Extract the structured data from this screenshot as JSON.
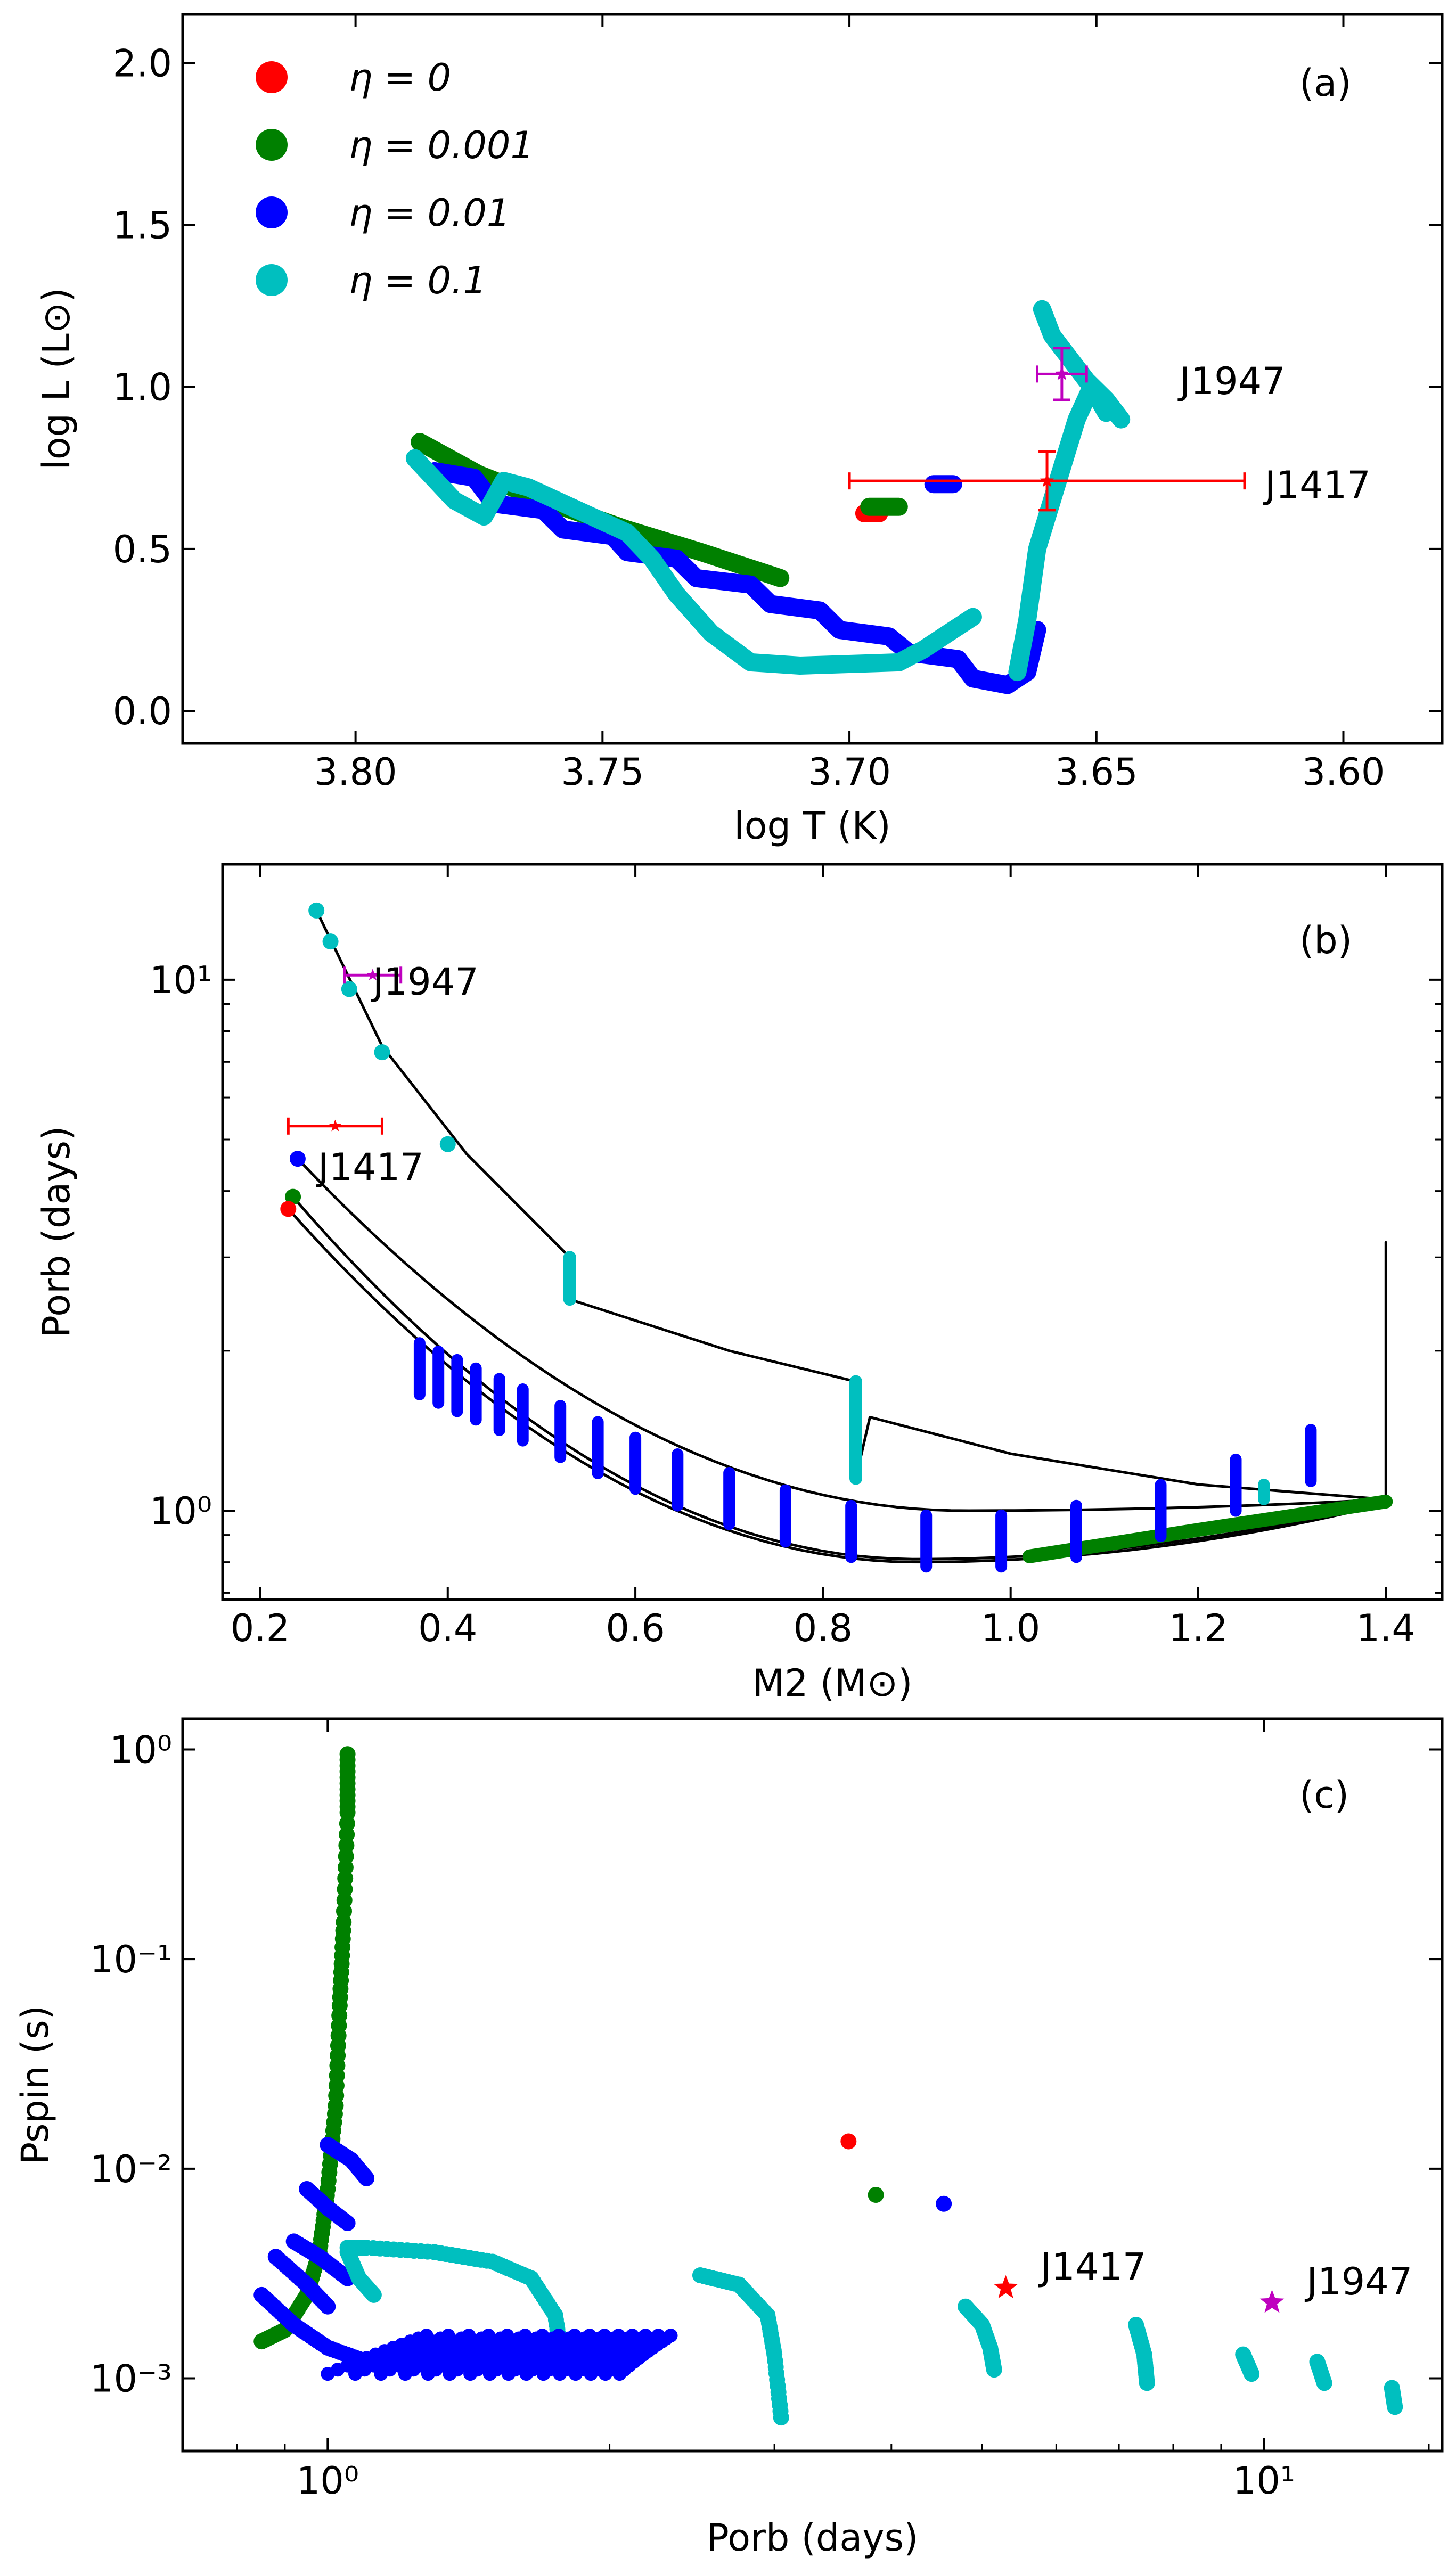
{
  "figure": {
    "panels": [
      "a",
      "b",
      "c"
    ]
  },
  "chart_data": [
    {
      "id": "a",
      "type": "scatter",
      "panel_label": "(a)",
      "xlabel": "log T (K)",
      "ylabel": "log L (L⊙)",
      "xlim": [
        3.835,
        3.58
      ],
      "ylim": [
        -0.1,
        2.15
      ],
      "x_scale": "linear",
      "y_scale": "linear",
      "x_ticks": [
        3.8,
        3.75,
        3.7,
        3.65,
        3.6
      ],
      "x_tick_labels": [
        "3.80",
        "3.75",
        "3.70",
        "3.65",
        "3.60"
      ],
      "y_ticks": [
        0.0,
        0.5,
        1.0,
        1.5,
        2.0
      ],
      "y_tick_labels": [
        "0.0",
        "0.5",
        "1.0",
        "1.5",
        "2.0"
      ],
      "legend_position": "top-left",
      "legend": [
        {
          "label": "η = 0",
          "color": "#ff0000"
        },
        {
          "label": "η = 0.001",
          "color": "#008000"
        },
        {
          "label": "η = 0.01",
          "color": "#0000ff"
        },
        {
          "label": "η = 0.1",
          "color": "#00bfbf"
        }
      ],
      "series": [
        {
          "color": "#008000",
          "points": [
            [
              3.787,
              0.83
            ],
            [
              3.775,
              0.73
            ],
            [
              3.76,
              0.64
            ],
            [
              3.745,
              0.56
            ],
            [
              3.73,
              0.49
            ],
            [
              3.72,
              0.44
            ],
            [
              3.714,
              0.41
            ]
          ]
        },
        {
          "color": "#ff0000",
          "points": [
            [
              3.697,
              0.61
            ],
            [
              3.694,
              0.61
            ]
          ]
        },
        {
          "color": "#008000",
          "points": [
            [
              3.696,
              0.63
            ],
            [
              3.69,
              0.63
            ]
          ]
        },
        {
          "color": "#0000ff",
          "points": [
            [
              3.683,
              0.7
            ],
            [
              3.679,
              0.7
            ]
          ]
        },
        {
          "color": "#0000ff",
          "points": [
            [
              3.784,
              0.74
            ],
            [
              3.776,
              0.72
            ],
            [
              3.772,
              0.64
            ],
            [
              3.762,
              0.62
            ],
            [
              3.758,
              0.56
            ],
            [
              3.748,
              0.54
            ],
            [
              3.745,
              0.49
            ],
            [
              3.735,
              0.47
            ],
            [
              3.731,
              0.41
            ],
            [
              3.72,
              0.39
            ],
            [
              3.716,
              0.33
            ],
            [
              3.706,
              0.31
            ],
            [
              3.702,
              0.25
            ],
            [
              3.692,
              0.23
            ],
            [
              3.688,
              0.18
            ],
            [
              3.678,
              0.16
            ],
            [
              3.675,
              0.1
            ],
            [
              3.668,
              0.08
            ],
            [
              3.664,
              0.12
            ],
            [
              3.662,
              0.25
            ]
          ]
        },
        {
          "color": "#00bfbf",
          "points": [
            [
              3.788,
              0.78
            ],
            [
              3.78,
              0.65
            ],
            [
              3.774,
              0.6
            ],
            [
              3.77,
              0.71
            ],
            [
              3.765,
              0.69
            ],
            [
              3.755,
              0.62
            ],
            [
              3.745,
              0.55
            ],
            [
              3.74,
              0.47
            ],
            [
              3.735,
              0.36
            ],
            [
              3.728,
              0.24
            ],
            [
              3.72,
              0.15
            ],
            [
              3.71,
              0.14
            ],
            [
              3.69,
              0.15
            ],
            [
              3.685,
              0.19
            ],
            [
              3.68,
              0.24
            ],
            [
              3.675,
              0.29
            ]
          ]
        },
        {
          "color": "#00bfbf",
          "points": [
            [
              3.666,
              0.12
            ],
            [
              3.664,
              0.28
            ],
            [
              3.662,
              0.5
            ],
            [
              3.659,
              0.65
            ],
            [
              3.656,
              0.8
            ],
            [
              3.654,
              0.9
            ],
            [
              3.651,
              1.0
            ],
            [
              3.648,
              0.92
            ]
          ]
        },
        {
          "color": "#00bfbf",
          "points": [
            [
              3.661,
              1.24
            ],
            [
              3.659,
              1.16
            ],
            [
              3.656,
              1.1
            ],
            [
              3.652,
              1.02
            ],
            [
              3.648,
              0.96
            ],
            [
              3.645,
              0.9
            ]
          ]
        }
      ],
      "annotations": [
        {
          "name": "J1947",
          "x": 3.657,
          "y": 1.04,
          "xerr": 0.005,
          "yerr": 0.08,
          "color": "#bf00bf"
        },
        {
          "name": "J1417",
          "x": 3.66,
          "y": 0.71,
          "xerr": 0.04,
          "yerr": 0.09,
          "color": "#ff0000"
        }
      ]
    },
    {
      "id": "b",
      "type": "line",
      "panel_label": "(b)",
      "xlabel": "M2 (M⊙)",
      "ylabel": "Porb (days)",
      "xlim": [
        0.16,
        1.46
      ],
      "ylim": [
        0.68,
        16.5
      ],
      "x_scale": "linear",
      "y_scale": "log",
      "x_ticks": [
        0.2,
        0.4,
        0.6,
        0.8,
        1.0,
        1.2,
        1.4
      ],
      "x_tick_labels": [
        "0.2",
        "0.4",
        "0.6",
        "0.8",
        "1.0",
        "1.2",
        "1.4"
      ],
      "y_ticks": [
        1,
        10
      ],
      "y_tick_labels": [
        "10⁰",
        "10¹"
      ],
      "tracks": [
        {
          "color": "#ff0000",
          "end": [
            0.23,
            3.7
          ]
        },
        {
          "color": "#008000",
          "end": [
            0.235,
            3.9
          ]
        },
        {
          "color": "#0000ff",
          "end": [
            0.24,
            4.6
          ]
        },
        {
          "color": "#00bfbf",
          "end": [
            0.26,
            13.5
          ]
        }
      ],
      "annotations": [
        {
          "name": "J1947",
          "x": 0.32,
          "y": 10.2,
          "xerr": 0.03,
          "color": "#bf00bf"
        },
        {
          "name": "J1417",
          "x": 0.28,
          "y": 5.3,
          "xerr": 0.05,
          "color": "#ff0000"
        }
      ]
    },
    {
      "id": "c",
      "type": "scatter",
      "panel_label": "(c)",
      "xlabel": "Porb (days)",
      "ylabel": "Pspin (s)",
      "xlim": [
        0.7,
        15.5
      ],
      "ylim": [
        0.00045,
        1.4
      ],
      "x_scale": "log",
      "y_scale": "log",
      "x_ticks": [
        1,
        10
      ],
      "x_tick_labels": [
        "10⁰",
        "10¹"
      ],
      "y_ticks": [
        0.001,
        0.01,
        0.1,
        1
      ],
      "y_tick_labels": [
        "10⁻³",
        "10⁻²",
        "10⁻¹",
        "10⁰"
      ],
      "series": [
        {
          "color": "#008000",
          "points": [
            [
              0.85,
              0.0015
            ],
            [
              0.9,
              0.0017
            ],
            [
              0.95,
              0.0025
            ],
            [
              0.98,
              0.004
            ],
            [
              1.0,
              0.008
            ],
            [
              1.02,
              0.02
            ],
            [
              1.03,
              0.06
            ],
            [
              1.04,
              0.15
            ],
            [
              1.05,
              0.5
            ],
            [
              1.05,
              0.95
            ]
          ]
        },
        {
          "color": "#ff0000",
          "points": [
            [
              3.6,
              0.0135
            ]
          ]
        },
        {
          "color": "#008000",
          "points": [
            [
              3.85,
              0.0075
            ]
          ]
        },
        {
          "color": "#0000ff",
          "points": [
            [
              4.55,
              0.0068
            ]
          ]
        },
        {
          "color": "#0000ff",
          "points": [
            [
              1.0,
              0.013
            ],
            [
              1.06,
              0.011
            ],
            [
              1.1,
              0.009
            ]
          ]
        },
        {
          "color": "#0000ff",
          "points": [
            [
              0.95,
              0.008
            ],
            [
              1.0,
              0.0065
            ],
            [
              1.05,
              0.0055
            ]
          ]
        },
        {
          "color": "#0000ff",
          "points": [
            [
              0.92,
              0.0045
            ],
            [
              0.98,
              0.0038
            ],
            [
              1.05,
              0.003
            ]
          ]
        },
        {
          "color": "#0000ff",
          "points": [
            [
              0.88,
              0.0038
            ],
            [
              0.95,
              0.0028
            ],
            [
              1.0,
              0.0022
            ]
          ]
        },
        {
          "color": "#0000ff",
          "points": [
            [
              0.85,
              0.0025
            ],
            [
              0.92,
              0.0018
            ],
            [
              1.0,
              0.0014
            ],
            [
              1.1,
              0.0012
            ]
          ]
        },
        {
          "color": "#00bfbf",
          "points": [
            [
              1.05,
              0.0042
            ],
            [
              1.1,
              0.0042
            ],
            [
              1.3,
              0.004
            ],
            [
              1.5,
              0.0036
            ],
            [
              1.65,
              0.003
            ],
            [
              1.75,
              0.002
            ],
            [
              1.78,
              0.0012
            ]
          ]
        },
        {
          "color": "#00bfbf",
          "points": [
            [
              1.05,
              0.004
            ],
            [
              1.08,
              0.003
            ],
            [
              1.12,
              0.0025
            ]
          ]
        },
        {
          "color": "#00bfbf",
          "points": [
            [
              2.5,
              0.0031
            ],
            [
              2.75,
              0.0028
            ],
            [
              2.95,
              0.002
            ],
            [
              3.0,
              0.0013
            ],
            [
              3.05,
              0.00065
            ]
          ]
        },
        {
          "color": "#00bfbf",
          "points": [
            [
              4.8,
              0.0022
            ],
            [
              5.0,
              0.0018
            ],
            [
              5.1,
              0.0014
            ],
            [
              5.15,
              0.0011
            ]
          ]
        },
        {
          "color": "#00bfbf",
          "points": [
            [
              7.3,
              0.0018
            ],
            [
              7.45,
              0.0013
            ],
            [
              7.5,
              0.00095
            ]
          ]
        },
        {
          "color": "#00bfbf",
          "points": [
            [
              9.5,
              0.0013
            ],
            [
              9.7,
              0.00105
            ]
          ]
        },
        {
          "color": "#00bfbf",
          "points": [
            [
              11.4,
              0.0012
            ],
            [
              11.6,
              0.00095
            ]
          ]
        },
        {
          "color": "#00bfbf",
          "points": [
            [
              13.7,
              0.0009
            ],
            [
              13.8,
              0.00073
            ]
          ]
        }
      ],
      "annotations": [
        {
          "name": "J1417",
          "x": 5.3,
          "y": 0.0027,
          "color": "#ff0000"
        },
        {
          "name": "J1947",
          "x": 10.2,
          "y": 0.0023,
          "color": "#bf00bf"
        }
      ]
    }
  ]
}
